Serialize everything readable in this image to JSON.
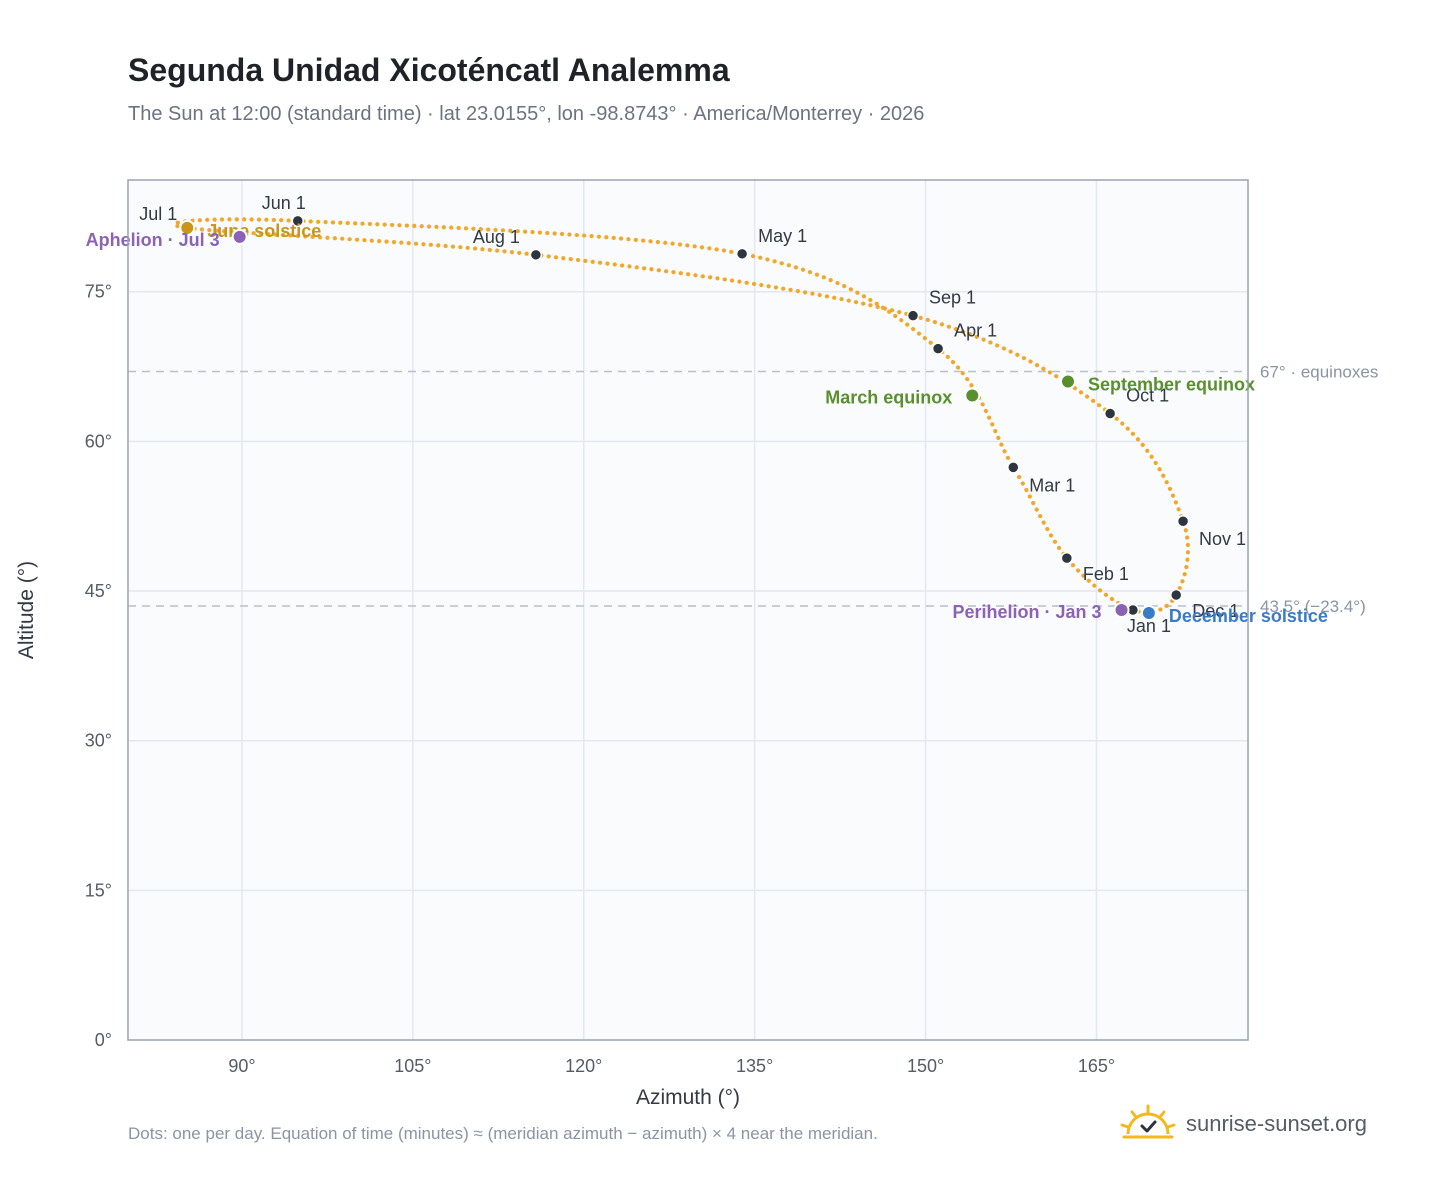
{
  "header": {
    "title": "Segunda Unidad Xicoténcatl Analemma",
    "subtitle": "The Sun at 12:00 (standard time) · lat 23.0155°, lon -98.8743° · America/Monterrey · 2026"
  },
  "footer": {
    "note": "Dots: one per day. Equation of time (minutes) ≈ (meridian azimuth − azimuth) × 4 near the meridian.",
    "brand": "sunrise-sunset.org"
  },
  "chart_data": {
    "type": "scatter",
    "xlabel": "Azimuth (°)",
    "ylabel": "Altitude (°)",
    "xlim": [
      80,
      178.3
    ],
    "ylim": [
      0,
      86.2
    ],
    "xticks": [
      90,
      105,
      120,
      135,
      150,
      165
    ],
    "xtick_labels": [
      "90°",
      "105°",
      "120°",
      "135°",
      "150°",
      "165°"
    ],
    "yticks": [
      0,
      15,
      30,
      45,
      60,
      75
    ],
    "ytick_labels": [
      "0°",
      "15°",
      "30°",
      "45°",
      "60°",
      "75°"
    ],
    "grid": true,
    "path_color": "#f2a62a",
    "reference_lines": [
      {
        "y": 67,
        "label": "67° · equinoxes"
      },
      {
        "y": 43.5,
        "label": "43.5° (−23.4°)"
      }
    ],
    "months": [
      {
        "label": "Jan 1",
        "x": 168.2,
        "y": 43.1
      },
      {
        "label": "Feb 1",
        "x": 162.4,
        "y": 48.3
      },
      {
        "label": "Mar 1",
        "x": 157.7,
        "y": 57.4
      },
      {
        "label": "Apr 1",
        "x": 151.1,
        "y": 69.3
      },
      {
        "label": "May 1",
        "x": 133.9,
        "y": 78.8
      },
      {
        "label": "Jun 1",
        "x": 94.9,
        "y": 82.1
      },
      {
        "label": "Jul 1",
        "x": 85.2,
        "y": 81.4
      },
      {
        "label": "Aug 1",
        "x": 115.8,
        "y": 78.7
      },
      {
        "label": "Sep 1",
        "x": 148.9,
        "y": 72.6
      },
      {
        "label": "Oct 1",
        "x": 166.2,
        "y": 62.8
      },
      {
        "label": "Nov 1",
        "x": 172.6,
        "y": 52.0
      },
      {
        "label": "Dec 1",
        "x": 172.0,
        "y": 44.6
      }
    ],
    "events": [
      {
        "label": "March equinox",
        "x": 154.1,
        "y": 64.6,
        "color": "#5a8f2e"
      },
      {
        "label": "June solstice",
        "x": 85.2,
        "y": 81.4,
        "color": "#c9961a"
      },
      {
        "label": "Aphelion · Jul 3",
        "x": 89.8,
        "y": 80.5,
        "color": "#8c62b4"
      },
      {
        "label": "September equinox",
        "x": 162.5,
        "y": 66.0,
        "color": "#5a8f2e"
      },
      {
        "label": "Perihelion · Jan 3",
        "x": 167.2,
        "y": 43.1,
        "color": "#8c62b4"
      },
      {
        "label": "December solstice",
        "x": 169.6,
        "y": 42.8,
        "color": "#3a7bc8"
      }
    ],
    "daily_points_shown": "one per day"
  }
}
